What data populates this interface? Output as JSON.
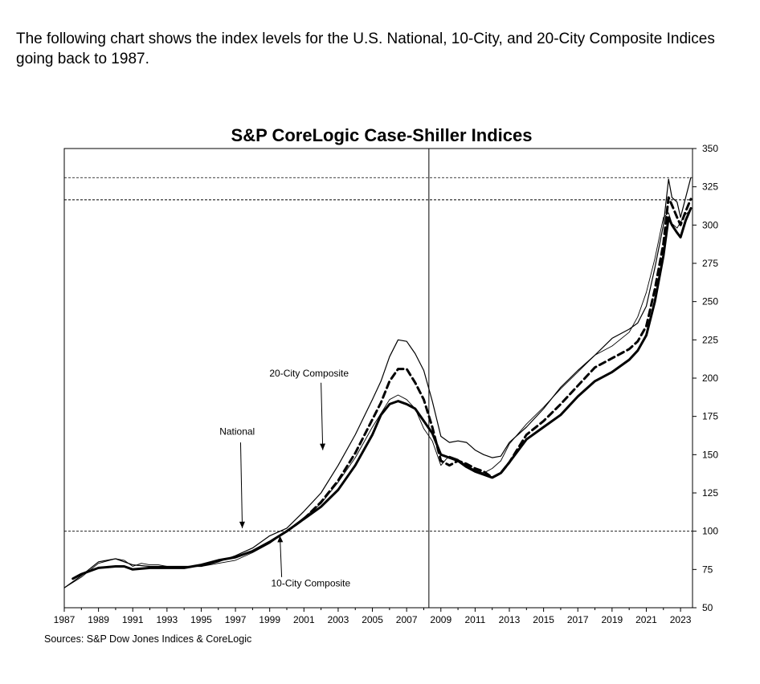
{
  "intro_text": "The following chart shows the index levels for the U.S. National, 10-City, and 20-City Composite Indices going back to 1987.",
  "source_text": "Sources:  S&P Dow Jones Indices & CoreLogic",
  "chart_data": {
    "type": "line",
    "title": "S&P CoreLogic Case-Shiller Indices",
    "xlim": [
      1987,
      2023.7
    ],
    "ylim": [
      50,
      350
    ],
    "x_ticks": [
      "1987",
      "1989",
      "1991",
      "1993",
      "1995",
      "1997",
      "1999",
      "2001",
      "2003",
      "2005",
      "2007",
      "2009",
      "2011",
      "2013",
      "2015",
      "2017",
      "2019",
      "2021",
      "2023"
    ],
    "y_ticks": [
      "50",
      "75",
      "100",
      "125",
      "150",
      "175",
      "200",
      "225",
      "250",
      "275",
      "300",
      "325",
      "350"
    ],
    "grid": false,
    "reference_lines": {
      "vertical_x": 2008.3,
      "horizontal_y": [
        100,
        316.5,
        331
      ]
    },
    "annotations": [
      {
        "text": "20-City Composite",
        "x": 2001.3,
        "y": 201
      },
      {
        "text": "National",
        "x": 1997.1,
        "y": 163
      },
      {
        "text": "10-City Composite",
        "x": 2001.4,
        "y": 64
      }
    ],
    "series": [
      {
        "name": "National",
        "style": "thin",
        "x": [
          1987,
          1988,
          1989,
          1990,
          1990.5,
          1991,
          1991.5,
          1992,
          1992.5,
          1993,
          1994,
          1995,
          1996,
          1997,
          1998,
          1999,
          2000,
          2001,
          2002,
          2003,
          2004,
          2005,
          2005.5,
          2006,
          2006.5,
          2007,
          2007.5,
          2008,
          2008.5,
          2009,
          2009.3,
          2009.5,
          2010,
          2010.5,
          2011,
          2011.5,
          2012,
          2012.5,
          2013,
          2014,
          2015,
          2016,
          2017,
          2018,
          2019,
          2020,
          2020.5,
          2021,
          2021.5,
          2022,
          2022.3,
          2022.5,
          2022.8,
          2023,
          2023.3,
          2023.6
        ],
        "y": [
          63,
          70,
          79,
          82,
          81,
          77,
          79,
          78,
          78,
          77,
          77,
          77,
          79,
          81,
          86,
          92,
          100,
          109,
          118,
          132,
          148,
          168,
          177,
          186,
          189,
          186,
          180,
          167,
          159,
          143,
          147,
          149,
          147,
          143,
          140,
          138,
          141,
          146,
          157,
          170,
          181,
          193,
          204,
          215,
          221,
          230,
          240,
          256,
          278,
          305,
          308,
          301,
          298,
          302,
          307,
          310
        ]
      },
      {
        "name": "10-City Composite",
        "style": "medium",
        "x": [
          1987,
          1988,
          1989,
          1990,
          1991,
          1992,
          1993,
          1994,
          1995,
          1996,
          1997,
          1998,
          1999,
          2000,
          2001,
          2002,
          2003,
          2004,
          2005,
          2005.5,
          2006,
          2006.5,
          2007,
          2007.5,
          2008,
          2008.5,
          2009,
          2009.5,
          2010,
          2010.5,
          2011,
          2011.5,
          2012,
          2012.5,
          2013,
          2014,
          2015,
          2016,
          2017,
          2018,
          2019,
          2020,
          2020.5,
          2021,
          2021.5,
          2022,
          2022.3,
          2022.5,
          2022.8,
          2023,
          2023.3,
          2023.6
        ],
        "y": [
          63,
          71,
          80,
          82,
          78,
          77,
          77,
          77,
          77,
          80,
          84,
          89,
          97,
          102,
          113,
          125,
          143,
          163,
          186,
          198,
          214,
          225,
          224,
          216,
          205,
          185,
          162,
          158,
          159,
          158,
          153,
          150,
          148,
          149,
          158,
          168,
          180,
          194,
          205,
          215,
          226,
          232,
          236,
          247,
          272,
          300,
          330,
          318,
          315,
          305,
          318,
          331
        ]
      },
      {
        "name": "20-City Composite",
        "style": "dashed",
        "x": [
          2000,
          2001,
          2002,
          2003,
          2004,
          2005,
          2005.5,
          2006,
          2006.5,
          2007,
          2007.5,
          2008,
          2008.5,
          2009,
          2009.5,
          2010,
          2010.5,
          2011,
          2011.5,
          2012,
          2012.5,
          2013,
          2014,
          2015,
          2016,
          2017,
          2018,
          2019,
          2020,
          2020.5,
          2021,
          2021.5,
          2022,
          2022.3,
          2022.5,
          2022.8,
          2023,
          2023.3,
          2023.6
        ],
        "y": [
          100,
          108,
          119,
          133,
          151,
          173,
          184,
          198,
          206,
          206,
          197,
          186,
          168,
          146,
          143,
          146,
          144,
          141,
          139,
          135,
          138,
          145,
          163,
          172,
          183,
          195,
          207,
          213,
          219,
          224,
          234,
          258,
          288,
          318,
          313,
          305,
          300,
          309,
          317
        ]
      },
      {
        "name": "",
        "style": "thick",
        "x": [
          1987.5,
          1988,
          1989,
          1990,
          1990.5,
          1991,
          1992,
          1993,
          1994,
          1995,
          1996,
          1997,
          1998,
          1999,
          2000,
          2001,
          2002,
          2003,
          2004,
          2005,
          2005.5,
          2006,
          2006.5,
          2007,
          2007.5,
          2008,
          2008.5,
          2009,
          2009.5,
          2010,
          2010.5,
          2011,
          2011.5,
          2012,
          2012.5,
          2013,
          2014,
          2015,
          2016,
          2017,
          2018,
          2019,
          2020,
          2020.5,
          2021,
          2021.5,
          2022,
          2022.3,
          2022.5,
          2022.8,
          2023,
          2023.3,
          2023.6
        ],
        "y": [
          69,
          72,
          76,
          77,
          77,
          75,
          76,
          76,
          76,
          78,
          81,
          83,
          87,
          93,
          100,
          108,
          116,
          127,
          143,
          163,
          176,
          183,
          185,
          183,
          180,
          172,
          164,
          150,
          148,
          146,
          142,
          139,
          137,
          135,
          138,
          145,
          160,
          168,
          176,
          188,
          198,
          204,
          212,
          218,
          228,
          250,
          280,
          305,
          300,
          295,
          292,
          303,
          311
        ]
      }
    ]
  }
}
